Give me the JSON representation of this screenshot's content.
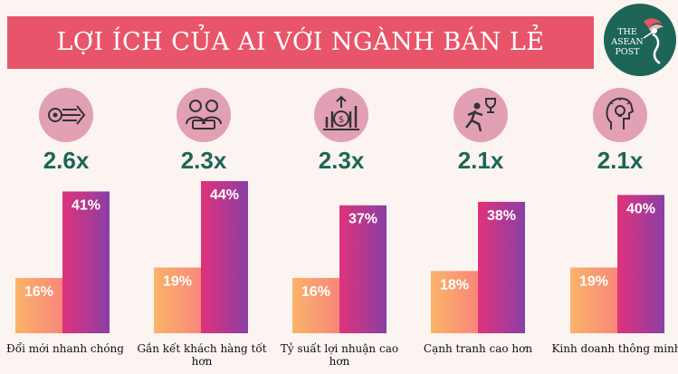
{
  "header": {
    "title": "LỢI ÍCH CỦA AI VỚI NGÀNH BÁN LẺ",
    "logo_lines": [
      "THE",
      "ASEAN",
      "POST"
    ]
  },
  "colors": {
    "banner": "#e8556a",
    "multiplier": "#1d6657",
    "icon_bg": "#e2a0b5",
    "logo_bg": "#1d6657"
  },
  "icons": [
    "arrow-speed-icon",
    "people-engagement-icon",
    "profit-growth-icon",
    "runner-trophy-icon",
    "head-lightbulb-icon"
  ],
  "multipliers": [
    "2.6x",
    "2.3x",
    "2.3x",
    "2.1x",
    "2.1x"
  ],
  "chart_data": {
    "type": "bar",
    "categories": [
      "Đổi mới nhanh chóng",
      "Gắn kết khách hàng tốt hơn",
      "Tỷ suất lợi nhuận cao hơn",
      "Cạnh tranh cao hơn",
      "Kinh doanh thông minh"
    ],
    "series": [
      {
        "values": [
          16,
          19,
          16,
          18,
          19
        ],
        "labels": [
          "16%",
          "19%",
          "16%",
          "18%",
          "19%"
        ]
      },
      {
        "values": [
          41,
          44,
          37,
          38,
          40
        ],
        "labels": [
          "41%",
          "44%",
          "37%",
          "38%",
          "40%"
        ]
      }
    ],
    "ylim": [
      0,
      44
    ]
  }
}
